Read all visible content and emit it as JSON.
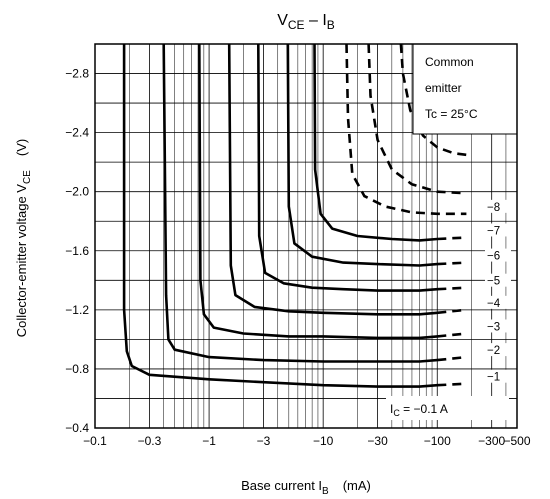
{
  "chart_data": {
    "type": "line",
    "title_main": "V",
    "title_sub1": "CE",
    "title_mid": " – I",
    "title_sub2": "B",
    "xlabel_main": "Base current   I",
    "xlabel_sub": "B",
    "xlabel_unit": "(mA)",
    "ylabel_main": "Collector-emitter voltage   V",
    "ylabel_sub": "CE",
    "ylabel_unit": "(V)",
    "x_scale": "log",
    "xlim": [
      -0.1,
      -500
    ],
    "ylim": [
      -0.4,
      -3.0
    ],
    "grid": true,
    "x_ticks": [
      {
        "v": -0.1,
        "label": "−0.1"
      },
      {
        "v": -0.3,
        "label": "−0.3"
      },
      {
        "v": -1,
        "label": "−1"
      },
      {
        "v": -3,
        "label": "−3"
      },
      {
        "v": -10,
        "label": "−10"
      },
      {
        "v": -30,
        "label": "−30"
      },
      {
        "v": -100,
        "label": "−100"
      },
      {
        "v": -300,
        "label": "−300"
      },
      {
        "v": -500,
        "label": "−500"
      }
    ],
    "y_ticks": [
      {
        "v": -0.4,
        "label": "−0.4"
      },
      {
        "v": -0.8,
        "label": "−0.8"
      },
      {
        "v": -1.2,
        "label": "−1.2"
      },
      {
        "v": -1.6,
        "label": "−1.6"
      },
      {
        "v": -2.0,
        "label": "−2.0"
      },
      {
        "v": -2.4,
        "label": "−2.4"
      },
      {
        "v": -2.8,
        "label": "−2.8"
      }
    ],
    "annotation_lines": [
      "Common",
      "emitter",
      "Tc = 25°C"
    ],
    "ic_label_prefix": "I",
    "ic_label_sub": "C",
    "ic_label_suffix": " = −0.1 A",
    "series": [
      {
        "label": "−1",
        "solid": [
          [
            -0.18,
            -3.0
          ],
          [
            -0.18,
            -1.2
          ],
          [
            -0.19,
            -0.92
          ],
          [
            -0.21,
            -0.82
          ],
          [
            -0.3,
            -0.76
          ],
          [
            -1,
            -0.73
          ],
          [
            -3,
            -0.71
          ],
          [
            -10,
            -0.69
          ],
          [
            -30,
            -0.68
          ],
          [
            -70,
            -0.68
          ],
          [
            -100,
            -0.69
          ]
        ],
        "dashed": [
          [
            -100,
            -0.69
          ],
          [
            -180,
            -0.7
          ]
        ]
      },
      {
        "label": "−2",
        "solid": [
          [
            -0.4,
            -3.0
          ],
          [
            -0.42,
            -1.3
          ],
          [
            -0.44,
            -1.0
          ],
          [
            -0.5,
            -0.93
          ],
          [
            -1,
            -0.88
          ],
          [
            -3,
            -0.86
          ],
          [
            -10,
            -0.85
          ],
          [
            -30,
            -0.85
          ],
          [
            -70,
            -0.85
          ],
          [
            -100,
            -0.86
          ]
        ],
        "dashed": [
          [
            -100,
            -0.86
          ],
          [
            -180,
            -0.88
          ]
        ]
      },
      {
        "label": "−3",
        "solid": [
          [
            -0.82,
            -3.0
          ],
          [
            -0.84,
            -1.4
          ],
          [
            -0.9,
            -1.17
          ],
          [
            -1.1,
            -1.08
          ],
          [
            -2,
            -1.04
          ],
          [
            -5,
            -1.02
          ],
          [
            -10,
            -1.02
          ],
          [
            -30,
            -1.01
          ],
          [
            -70,
            -1.01
          ],
          [
            -100,
            -1.02
          ]
        ],
        "dashed": [
          [
            -100,
            -1.02
          ],
          [
            -180,
            -1.04
          ]
        ]
      },
      {
        "label": "−4",
        "solid": [
          [
            -1.5,
            -3.0
          ],
          [
            -1.55,
            -1.5
          ],
          [
            -1.7,
            -1.3
          ],
          [
            -2.5,
            -1.22
          ],
          [
            -5,
            -1.19
          ],
          [
            -10,
            -1.18
          ],
          [
            -30,
            -1.17
          ],
          [
            -70,
            -1.17
          ],
          [
            -100,
            -1.18
          ]
        ],
        "dashed": [
          [
            -100,
            -1.18
          ],
          [
            -180,
            -1.2
          ]
        ]
      },
      {
        "label": "−5",
        "solid": [
          [
            -2.7,
            -3.0
          ],
          [
            -2.75,
            -1.7
          ],
          [
            -3.1,
            -1.45
          ],
          [
            -4.5,
            -1.38
          ],
          [
            -8,
            -1.35
          ],
          [
            -15,
            -1.34
          ],
          [
            -30,
            -1.33
          ],
          [
            -70,
            -1.33
          ],
          [
            -100,
            -1.34
          ]
        ],
        "dashed": [
          [
            -100,
            -1.34
          ],
          [
            -180,
            -1.35
          ]
        ]
      },
      {
        "label": "−6",
        "solid": [
          [
            -4.9,
            -3.0
          ],
          [
            -5,
            -1.9
          ],
          [
            -5.6,
            -1.65
          ],
          [
            -8,
            -1.56
          ],
          [
            -15,
            -1.52
          ],
          [
            -30,
            -1.51
          ],
          [
            -70,
            -1.5
          ],
          [
            -100,
            -1.51
          ]
        ],
        "dashed": [
          [
            -100,
            -1.51
          ],
          [
            -180,
            -1.52
          ]
        ]
      },
      {
        "label": "−7",
        "solid": [
          [
            -8.4,
            -3.0
          ],
          [
            -8.5,
            -2.15
          ],
          [
            -9.5,
            -1.85
          ],
          [
            -12,
            -1.75
          ],
          [
            -20,
            -1.7
          ],
          [
            -40,
            -1.68
          ],
          [
            -70,
            -1.67
          ],
          [
            -100,
            -1.68
          ]
        ],
        "dashed": [
          [
            -100,
            -1.68
          ],
          [
            -180,
            -1.69
          ]
        ]
      },
      {
        "label": "−8",
        "solid": [],
        "dashed": [
          [
            -16,
            -3.0
          ],
          [
            -16.5,
            -2.5
          ],
          [
            -18,
            -2.12
          ],
          [
            -23,
            -1.97
          ],
          [
            -35,
            -1.9
          ],
          [
            -60,
            -1.86
          ],
          [
            -100,
            -1.85
          ],
          [
            -180,
            -1.85
          ]
        ]
      },
      {
        "label": "",
        "solid": [],
        "dashed": [
          [
            -25,
            -3.0
          ],
          [
            -26,
            -2.65
          ],
          [
            -30,
            -2.35
          ],
          [
            -40,
            -2.15
          ],
          [
            -60,
            -2.05
          ],
          [
            -100,
            -2.0
          ],
          [
            -180,
            -1.99
          ]
        ]
      },
      {
        "label": "",
        "solid": [],
        "dashed": [
          [
            -48,
            -3.0
          ],
          [
            -50,
            -2.8
          ],
          [
            -58,
            -2.55
          ],
          [
            -75,
            -2.38
          ],
          [
            -100,
            -2.3
          ],
          [
            -140,
            -2.26
          ],
          [
            -180,
            -2.25
          ]
        ]
      }
    ]
  }
}
